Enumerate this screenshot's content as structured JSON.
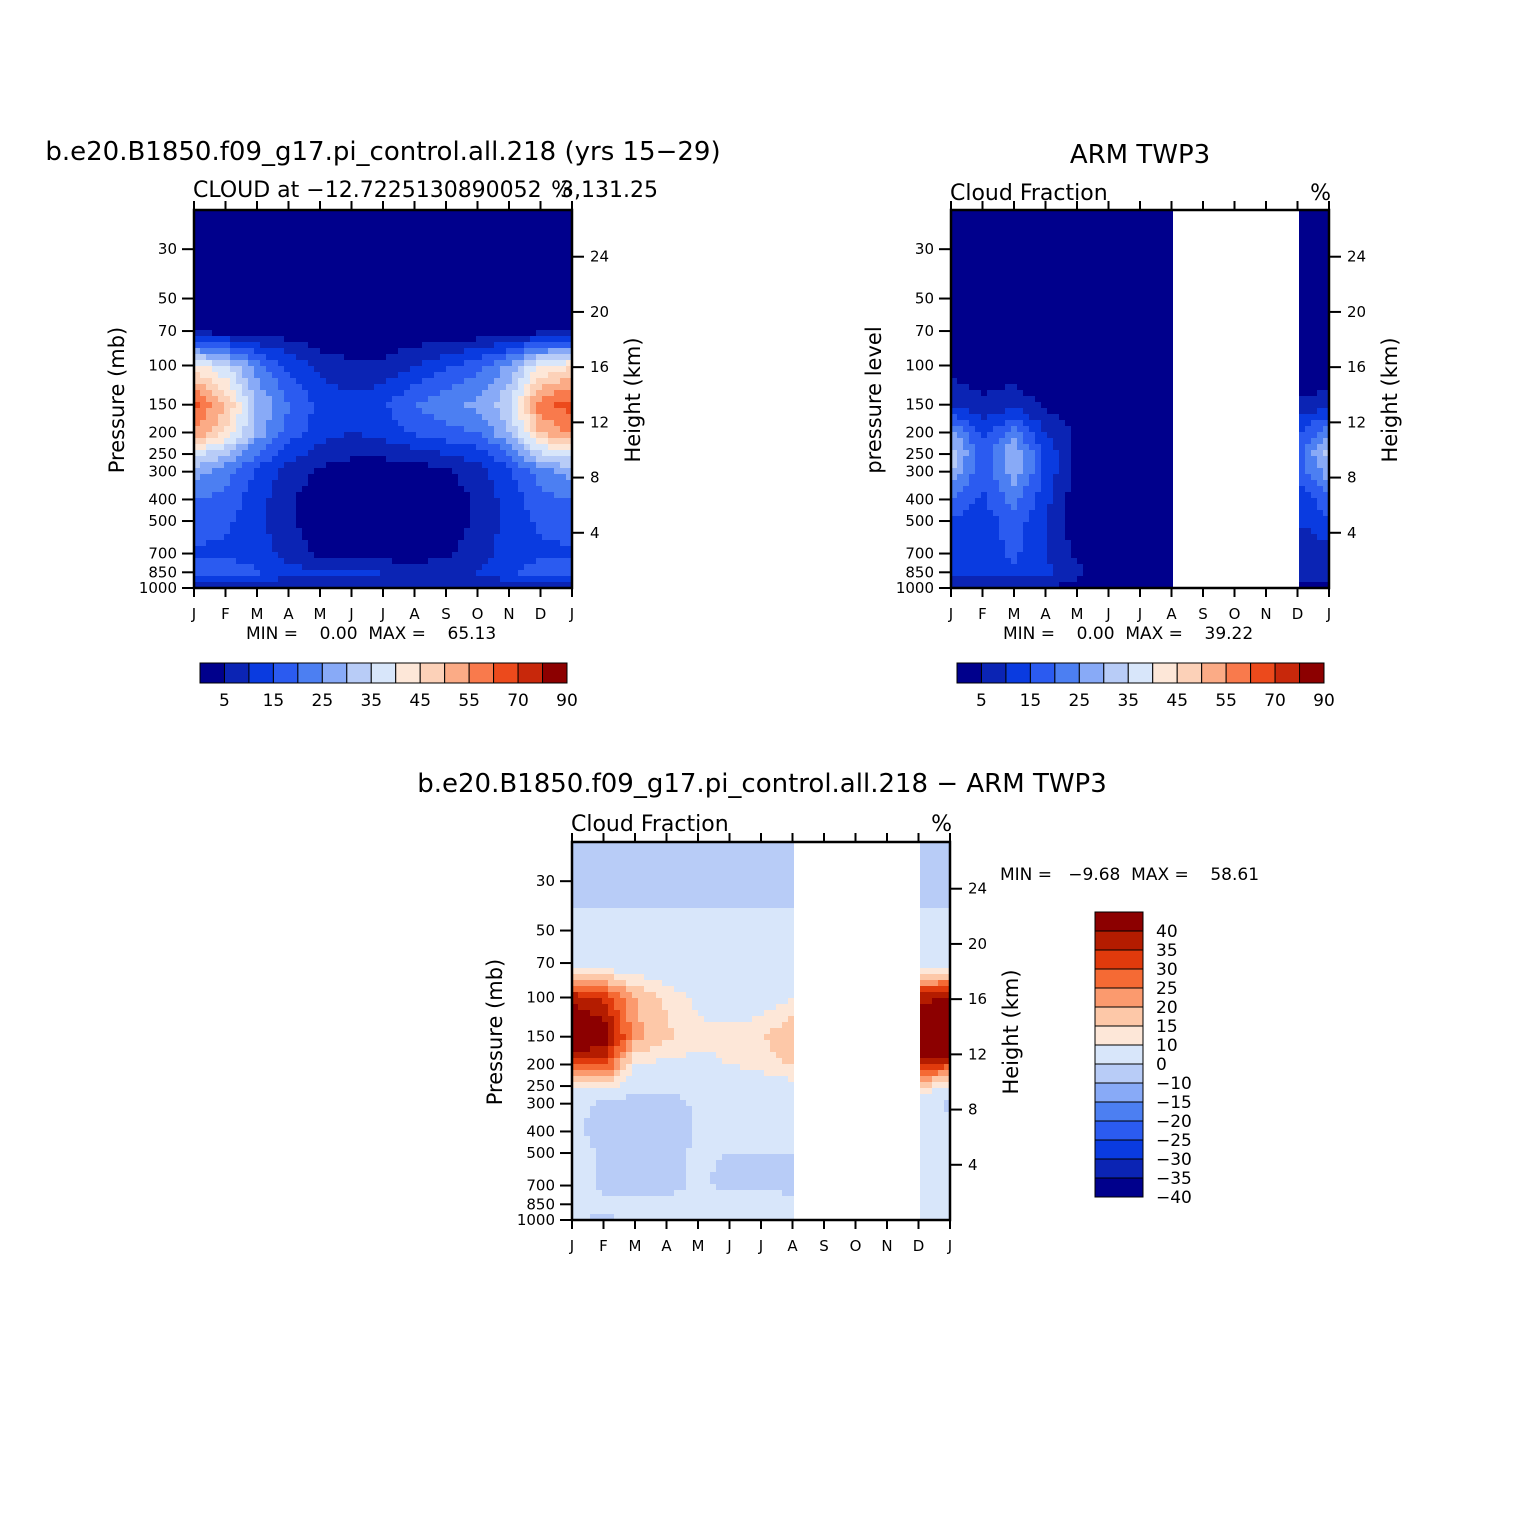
{
  "page": {
    "top_left_title": "b.e20.B1850.f09_g17.pi_control.all.218 (yrs 15−29)",
    "top_right_title": "ARM TWP3",
    "bottom_title": "b.e20.B1850.f09_g17.pi_control.all.218 − ARM TWP3"
  },
  "panels": [
    {
      "id": "model",
      "subtitle_left": "CLOUD at −12.7225130890052",
      "subtitle_right": "3,131.25",
      "unit": "%",
      "ylabel_left": "Pressure (mb)",
      "ylabel_right": "Height (km)",
      "stats_text": "MIN =    0.00  MAX =    65.13"
    },
    {
      "id": "obs",
      "subtitle_left": "Cloud Fraction",
      "subtitle_right": "",
      "unit": "%",
      "ylabel_left": "pressure level",
      "ylabel_right": "Height (km)",
      "stats_text": "MIN =    0.00  MAX =    39.22"
    },
    {
      "id": "diff",
      "subtitle_left": "Cloud Fraction",
      "subtitle_right": "",
      "unit": "%",
      "ylabel_left": "Pressure (mb)",
      "ylabel_right": "Height (km)",
      "stats_text": "MIN =   −9.68  MAX =    58.61"
    }
  ],
  "axes": {
    "months": [
      "J",
      "F",
      "M",
      "A",
      "M",
      "J",
      "J",
      "A",
      "S",
      "O",
      "N",
      "D",
      "J"
    ],
    "pressure_ticks": [
      "30",
      "50",
      "70",
      "100",
      "150",
      "200",
      "250",
      "300",
      "400",
      "500",
      "700",
      "850",
      "1000"
    ],
    "height_ticks": [
      "24",
      "20",
      "16",
      "12",
      "8",
      "4"
    ]
  },
  "colorbars": {
    "abs_labels": [
      "5",
      "15",
      "25",
      "35",
      "45",
      "55",
      "70",
      "90"
    ],
    "abs_colors": [
      "#00008c",
      "#0b24b4",
      "#0a3be0",
      "#2b5bf0",
      "#4c7ff2",
      "#88aaf7",
      "#b8ccf7",
      "#d8e6fa",
      "#fde7d8",
      "#fcd1b8",
      "#fbab86",
      "#f97a4c",
      "#ec4a1c",
      "#c8280b",
      "#8c0000"
    ],
    "diff_labels": [
      "40",
      "35",
      "30",
      "25",
      "20",
      "15",
      "10",
      "0",
      "−10",
      "−15",
      "−20",
      "−25",
      "−30",
      "−35",
      "−40"
    ],
    "diff_colors": [
      "#8c0000",
      "#b41c00",
      "#e03a0c",
      "#f56a34",
      "#fb9a6e",
      "#fdc8a8",
      "#fde7d8",
      "#d8e6fa",
      "#b8ccf7",
      "#88aaf7",
      "#4c7ff2",
      "#2b5bf0",
      "#0a3be0",
      "#0b24b4",
      "#00008c"
    ]
  },
  "chart_data": [
    {
      "type": "heatmap",
      "title": "b.e20.B1850.f09_g17.pi_control.all.218 (yrs 15−29)",
      "subtitle": "CLOUD at −12.7225130890052 3,131.25",
      "xlabel": "",
      "ylabel": "Pressure (mb)",
      "ylabel_right": "Height (km)",
      "unit": "%",
      "x": [
        "J",
        "F",
        "M",
        "A",
        "M",
        "J",
        "J",
        "A",
        "S",
        "O",
        "N",
        "D",
        "J"
      ],
      "y_levels_mb": [
        30,
        50,
        70,
        100,
        150,
        200,
        250,
        300,
        400,
        500,
        700,
        850,
        1000
      ],
      "min": 0.0,
      "max": 65.13,
      "values": [
        [
          0,
          0,
          0,
          0,
          0,
          0,
          0,
          0,
          0,
          0,
          0,
          0,
          0
        ],
        [
          0,
          0,
          0,
          0,
          0,
          0,
          0,
          0,
          0,
          0,
          0,
          0,
          0
        ],
        [
          3,
          3,
          2,
          2,
          1,
          1,
          1,
          1,
          1,
          1,
          2,
          3,
          3
        ],
        [
          42,
          35,
          22,
          14,
          8,
          6,
          6,
          10,
          14,
          18,
          26,
          40,
          44
        ],
        [
          62,
          50,
          30,
          20,
          14,
          12,
          14,
          20,
          24,
          26,
          34,
          58,
          63
        ],
        [
          55,
          45,
          28,
          18,
          12,
          10,
          12,
          16,
          18,
          20,
          30,
          50,
          56
        ],
        [
          38,
          30,
          20,
          12,
          8,
          6,
          6,
          8,
          10,
          12,
          20,
          34,
          38
        ],
        [
          28,
          22,
          14,
          8,
          4,
          2,
          2,
          2,
          4,
          8,
          14,
          22,
          28
        ],
        [
          20,
          18,
          12,
          6,
          2,
          0,
          0,
          0,
          2,
          6,
          12,
          18,
          20
        ],
        [
          18,
          16,
          12,
          6,
          2,
          0,
          0,
          0,
          2,
          6,
          12,
          16,
          18
        ],
        [
          14,
          14,
          12,
          8,
          4,
          2,
          2,
          2,
          4,
          8,
          12,
          14,
          14
        ],
        [
          18,
          18,
          16,
          12,
          10,
          12,
          10,
          8,
          8,
          10,
          14,
          18,
          18
        ],
        [
          6,
          6,
          6,
          6,
          6,
          6,
          6,
          6,
          6,
          6,
          6,
          6,
          6
        ]
      ]
    },
    {
      "type": "heatmap",
      "title": "ARM TWP3",
      "subtitle": "Cloud Fraction",
      "xlabel": "",
      "ylabel": "pressure level",
      "ylabel_right": "Height (km)",
      "unit": "%",
      "x": [
        "J",
        "F",
        "M",
        "A",
        "M",
        "J",
        "J",
        "A",
        "S",
        "O",
        "N",
        "D",
        "J"
      ],
      "y_levels_mb": [
        30,
        50,
        70,
        100,
        150,
        200,
        250,
        300,
        400,
        500,
        700,
        850,
        1000
      ],
      "min": 0.0,
      "max": 39.22,
      "missing_months": [
        "S",
        "O",
        "N"
      ],
      "values": [
        [
          0,
          0,
          0,
          0,
          0,
          0,
          0,
          0,
          null,
          null,
          null,
          0,
          0
        ],
        [
          0,
          0,
          0,
          0,
          0,
          0,
          0,
          0,
          null,
          null,
          null,
          0,
          0
        ],
        [
          0,
          0,
          0,
          0,
          0,
          0,
          0,
          0,
          null,
          null,
          null,
          0,
          0
        ],
        [
          2,
          2,
          2,
          0,
          0,
          0,
          0,
          0,
          null,
          null,
          null,
          0,
          0
        ],
        [
          10,
          6,
          8,
          4,
          2,
          0,
          0,
          0,
          null,
          null,
          null,
          6,
          8
        ],
        [
          26,
          14,
          22,
          10,
          4,
          0,
          0,
          0,
          null,
          null,
          null,
          14,
          24
        ],
        [
          34,
          16,
          30,
          14,
          4,
          0,
          0,
          0,
          null,
          null,
          null,
          18,
          32
        ],
        [
          30,
          16,
          28,
          14,
          2,
          0,
          0,
          0,
          null,
          null,
          null,
          16,
          28
        ],
        [
          20,
          14,
          22,
          12,
          2,
          0,
          0,
          0,
          null,
          null,
          null,
          12,
          18
        ],
        [
          14,
          12,
          18,
          10,
          2,
          0,
          0,
          0,
          null,
          null,
          null,
          10,
          14
        ],
        [
          10,
          12,
          16,
          10,
          4,
          2,
          0,
          0,
          null,
          null,
          null,
          6,
          8
        ],
        [
          12,
          14,
          14,
          12,
          6,
          2,
          0,
          0,
          null,
          null,
          null,
          6,
          8
        ],
        [
          4,
          4,
          4,
          4,
          4,
          2,
          0,
          0,
          null,
          null,
          null,
          4,
          4
        ]
      ]
    },
    {
      "type": "heatmap",
      "title": "b.e20.B1850.f09_g17.pi_control.all.218 − ARM TWP3",
      "subtitle": "Cloud Fraction",
      "xlabel": "",
      "ylabel": "Pressure (mb)",
      "ylabel_right": "Height (km)",
      "unit": "%",
      "x": [
        "J",
        "F",
        "M",
        "A",
        "M",
        "J",
        "J",
        "A",
        "S",
        "O",
        "N",
        "D",
        "J"
      ],
      "y_levels_mb": [
        30,
        50,
        70,
        100,
        150,
        200,
        250,
        300,
        400,
        500,
        700,
        850,
        1000
      ],
      "min": -9.68,
      "max": 58.61,
      "missing_months": [
        "S",
        "O",
        "N"
      ],
      "values": [
        [
          -2,
          -2,
          -2,
          -2,
          -2,
          -2,
          -2,
          -2,
          null,
          null,
          null,
          -2,
          -2
        ],
        [
          2,
          2,
          2,
          2,
          2,
          2,
          2,
          2,
          null,
          null,
          null,
          2,
          2
        ],
        [
          5,
          5,
          4,
          4,
          3,
          3,
          3,
          3,
          null,
          null,
          null,
          5,
          6
        ],
        [
          38,
          34,
          20,
          14,
          8,
          6,
          6,
          10,
          null,
          null,
          null,
          38,
          40
        ],
        [
          52,
          44,
          22,
          16,
          12,
          12,
          14,
          20,
          null,
          null,
          null,
          52,
          55
        ],
        [
          30,
          32,
          10,
          8,
          8,
          10,
          12,
          16,
          null,
          null,
          null,
          36,
          32
        ],
        [
          10,
          14,
          6,
          2,
          4,
          6,
          6,
          8,
          null,
          null,
          null,
          16,
          10
        ],
        [
          3,
          -2,
          -6,
          -5,
          2,
          2,
          2,
          2,
          null,
          null,
          null,
          6,
          -2
        ],
        [
          2,
          -3,
          -6,
          -4,
          1,
          0,
          0,
          0,
          null,
          null,
          null,
          4,
          2
        ],
        [
          6,
          -2,
          -4,
          -2,
          1,
          0,
          0,
          0,
          null,
          null,
          null,
          6,
          4
        ],
        [
          4,
          -2,
          -4,
          -2,
          1,
          -2,
          -2,
          -4,
          null,
          null,
          null,
          4,
          6
        ],
        [
          4,
          2,
          2,
          2,
          4,
          8,
          8,
          4,
          null,
          null,
          null,
          8,
          8
        ],
        [
          2,
          -2,
          2,
          2,
          2,
          2,
          2,
          2,
          null,
          null,
          null,
          2,
          2
        ]
      ]
    }
  ]
}
